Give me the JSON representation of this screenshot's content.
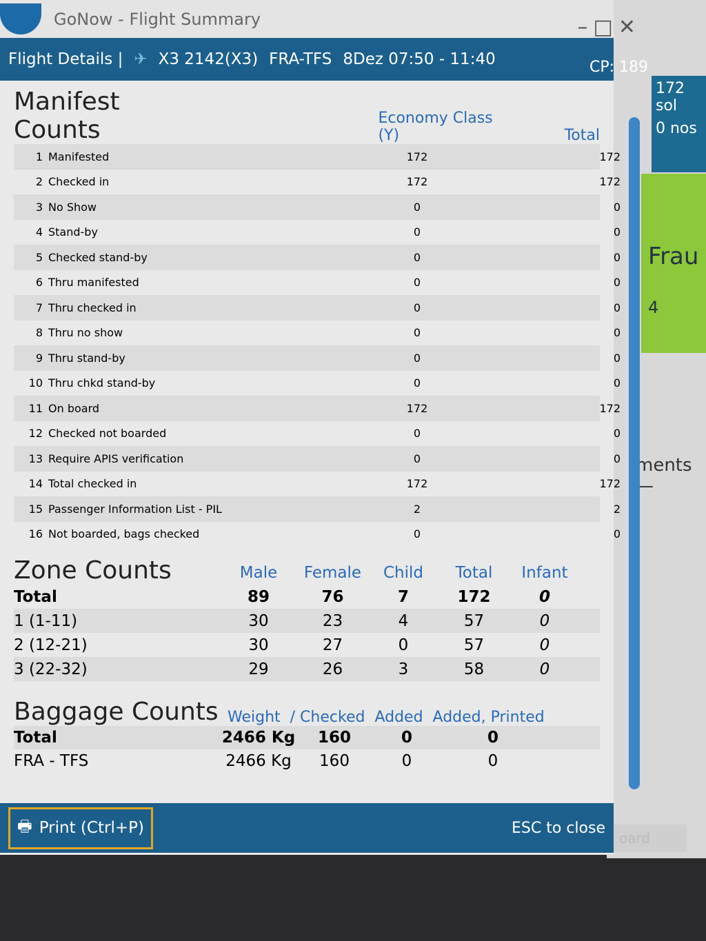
{
  "window": {
    "title": "GoNow - Flight Summary"
  },
  "header": {
    "section": "Flight Details |",
    "flight": "X3 2142(X3)",
    "route": "FRA-TFS",
    "time": "8Dez 07:50 - 11:40",
    "cp": "CP: 189"
  },
  "background": {
    "sold": "172 sol",
    "noshow": "0 nos",
    "frau": "Frau",
    "four": "4",
    "ments": "ments —",
    "board": "oard"
  },
  "manifest": {
    "title": "Manifest Counts",
    "col_class": "Economy Class (Y)",
    "col_total": "Total",
    "rows": [
      {
        "n": "1",
        "label": "Manifested",
        "y": "172",
        "total": "172"
      },
      {
        "n": "2",
        "label": "Checked in",
        "y": "172",
        "total": "172"
      },
      {
        "n": "3",
        "label": "No Show",
        "y": "0",
        "total": "0"
      },
      {
        "n": "4",
        "label": "Stand-by",
        "y": "0",
        "total": "0"
      },
      {
        "n": "5",
        "label": "Checked stand-by",
        "y": "0",
        "total": "0"
      },
      {
        "n": "6",
        "label": "Thru manifested",
        "y": "0",
        "total": "0"
      },
      {
        "n": "7",
        "label": "Thru checked in",
        "y": "0",
        "total": "0"
      },
      {
        "n": "8",
        "label": "Thru no show",
        "y": "0",
        "total": "0"
      },
      {
        "n": "9",
        "label": "Thru stand-by",
        "y": "0",
        "total": "0"
      },
      {
        "n": "10",
        "label": "Thru chkd stand-by",
        "y": "0",
        "total": "0"
      },
      {
        "n": "11",
        "label": "On board",
        "y": "172",
        "total": "172"
      },
      {
        "n": "12",
        "label": "Checked not boarded",
        "y": "0",
        "total": "0"
      },
      {
        "n": "13",
        "label": "Require APIS verification",
        "y": "0",
        "total": "0"
      },
      {
        "n": "14",
        "label": "Total checked in",
        "y": "172",
        "total": "172"
      },
      {
        "n": "15",
        "label": "Passenger Information List - PIL",
        "y": "2",
        "total": "2"
      },
      {
        "n": "16",
        "label": "Not boarded, bags checked",
        "y": "0",
        "total": "0"
      }
    ]
  },
  "zone": {
    "title": "Zone Counts",
    "headers": [
      "Male",
      "Female",
      "Child",
      "Total",
      "Infant"
    ],
    "rows": [
      {
        "label": "Total",
        "v": [
          "89",
          "76",
          "7",
          "172",
          "0"
        ]
      },
      {
        "label": "1 (1-11)",
        "v": [
          "30",
          "23",
          "4",
          "57",
          "0"
        ]
      },
      {
        "label": "2 (12-21)",
        "v": [
          "30",
          "27",
          "0",
          "57",
          "0"
        ]
      },
      {
        "label": "3 (22-32)",
        "v": [
          "29",
          "26",
          "3",
          "58",
          "0"
        ]
      }
    ]
  },
  "baggage": {
    "title": "Baggage Counts",
    "headers": [
      "Weight",
      "/ Checked",
      "Added",
      "Added, Printed"
    ],
    "rows": [
      {
        "label": "Total",
        "v": [
          "2466 Kg",
          "160",
          "0",
          "0"
        ]
      },
      {
        "label": "FRA - TFS",
        "v": [
          "2466 Kg",
          "160",
          "0",
          "0"
        ]
      }
    ]
  },
  "footer": {
    "print": "Print (Ctrl+P)",
    "esc": "ESC to close"
  }
}
